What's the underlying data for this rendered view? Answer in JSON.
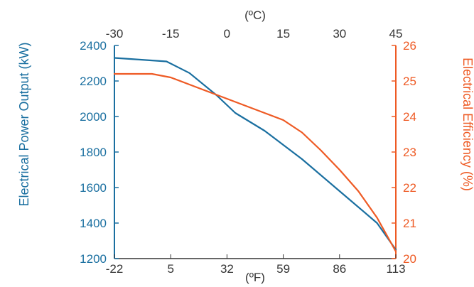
{
  "chart_data": {
    "type": "line",
    "top_axis": {
      "label": "(ºC)",
      "ticks": [
        "-30",
        "-15",
        "0",
        "15",
        "30",
        "45"
      ],
      "range": [
        -30,
        45
      ]
    },
    "bottom_axis": {
      "label": "(ºF)",
      "ticks": [
        "-22",
        "5",
        "32",
        "59",
        "86",
        "113"
      ],
      "range": [
        -22,
        113
      ]
    },
    "left_axis": {
      "label": "Electrical Power Output (kW)",
      "ticks": [
        "1200",
        "1400",
        "1600",
        "1800",
        "2000",
        "2200",
        "2400"
      ],
      "range": [
        1200,
        2400
      ],
      "color": "#1a6fa0"
    },
    "right_axis": {
      "label": "Electrical Efficiency (%)",
      "ticks": [
        "20",
        "21",
        "22",
        "23",
        "24",
        "25",
        "26"
      ],
      "range": [
        20,
        26
      ],
      "color": "#ee5a24"
    },
    "series": [
      {
        "axis": "left",
        "color": "#1a6fa0",
        "x": [
          -22,
          3,
          14,
          27,
          36,
          50,
          68,
          86,
          104,
          113
        ],
        "y": [
          2330,
          2310,
          2245,
          2120,
          2020,
          1920,
          1760,
          1580,
          1400,
          1250
        ]
      },
      {
        "axis": "right",
        "color": "#ee5a24",
        "x": [
          -22,
          -4,
          5,
          14,
          23,
          32,
          41,
          50,
          59,
          68,
          77,
          86,
          95,
          104,
          113
        ],
        "y": [
          25.2,
          25.2,
          25.1,
          24.9,
          24.7,
          24.5,
          24.3,
          24.1,
          23.9,
          23.55,
          23.05,
          22.5,
          21.9,
          21.15,
          20.2
        ]
      }
    ],
    "grid": false
  }
}
